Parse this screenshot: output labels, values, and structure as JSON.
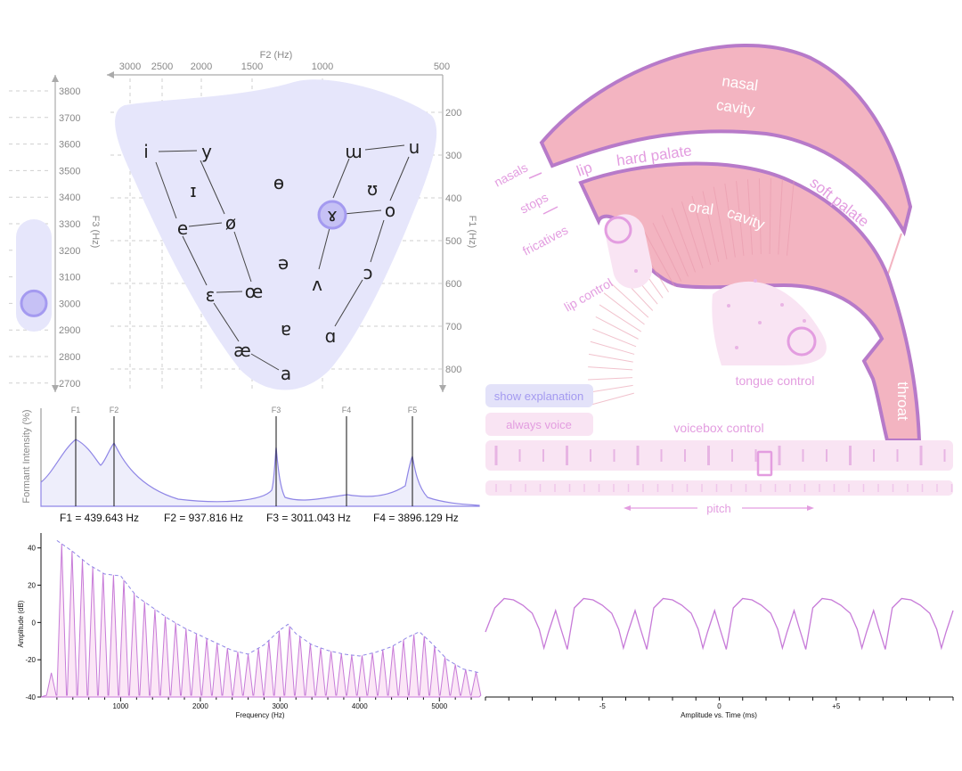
{
  "vowel_chart": {
    "f2_title": "F2 (Hz)",
    "f2_ticks": [
      "3000",
      "2500",
      "2000",
      "1500",
      "1000",
      "500"
    ],
    "f1_title": "F1 (Hz)",
    "f1_ticks": [
      "200",
      "300",
      "400",
      "500",
      "600",
      "700",
      "800"
    ],
    "f3_title": "F3 (Hz)",
    "f3_ticks": [
      "3800",
      "3700",
      "3600",
      "3500",
      "3400",
      "3300",
      "3200",
      "3100",
      "3000",
      "2900",
      "2800",
      "2700"
    ],
    "vowels": [
      "i",
      "y",
      "ɯ",
      "u",
      "ɪ",
      "ɵ",
      "ʊ",
      "ɤ",
      "o",
      "e",
      "ø",
      "ə",
      "ɔ",
      "ʌ",
      "ɛ",
      "œ",
      "ɐ",
      "ɑ",
      "æ",
      "a"
    ],
    "selected_vowel": "ɤ",
    "f3_selected": 3000
  },
  "formant_panel": {
    "ylabel": "Formant Intensity (%)",
    "markers": [
      "F1",
      "F2",
      "F3",
      "F4",
      "F5"
    ],
    "readouts": {
      "f1": "F1 = 439.643 Hz",
      "f2": "F2 = 937.816 Hz",
      "f3": "F3 = 3011.043 Hz",
      "f4": "F4 = 3896.129 Hz"
    }
  },
  "anatomy": {
    "nasal_line1": "nasal",
    "nasal_line2": "cavity",
    "hard_palate": "hard palate",
    "soft_palate": "soft palate",
    "oral": "oral",
    "cavity": "cavity",
    "throat": "throat",
    "lip": "lip",
    "nasals": "nasals",
    "stops": "stops",
    "fricatives": "fricatives",
    "lip_control": "lip control",
    "tongue_control": "tongue control",
    "colors": {
      "nasal_fill": "#f3b4c1",
      "outline": "#b77ac9",
      "accent": "#a49af0",
      "pink_text": "#e39de0"
    }
  },
  "controls": {
    "show_explanation": "show explanation",
    "always_voice": "always voice",
    "voicebox_label": "voicebox control",
    "pitch_label": "pitch"
  },
  "chart_data": [
    {
      "type": "line",
      "title": "",
      "xlabel": "Frequency (Hz)",
      "ylabel": "Amplitude (dB)",
      "x_ticks": [
        "1000",
        "2000",
        "3000",
        "4000",
        "5000"
      ],
      "y_ticks": [
        "40",
        "20",
        "0",
        "-20",
        "-40"
      ],
      "xlim": [
        0,
        5500
      ],
      "ylim": [
        -40,
        48
      ],
      "series": [
        {
          "values": [
            [
              200,
              44
            ],
            [
              400,
              38
            ],
            [
              600,
              31
            ],
            [
              800,
              26
            ],
            [
              1000,
              25
            ],
            [
              1200,
              14
            ],
            [
              1400,
              8
            ],
            [
              1600,
              2
            ],
            [
              1800,
              -3
            ],
            [
              2000,
              -7
            ],
            [
              2200,
              -11
            ],
            [
              2400,
              -15
            ],
            [
              2600,
              -17
            ],
            [
              2800,
              -12
            ],
            [
              3000,
              -4
            ],
            [
              3100,
              -1
            ],
            [
              3200,
              -6
            ],
            [
              3400,
              -12
            ],
            [
              3600,
              -15
            ],
            [
              3800,
              -17
            ],
            [
              4000,
              -18
            ],
            [
              4200,
              -16
            ],
            [
              4400,
              -13
            ],
            [
              4600,
              -8
            ],
            [
              4750,
              -5
            ],
            [
              4900,
              -11
            ],
            [
              5100,
              -20
            ],
            [
              5300,
              -25
            ],
            [
              5500,
              -27
            ]
          ]
        }
      ]
    },
    {
      "type": "line",
      "title": "",
      "xlabel": "Amplitude vs. Time (ms)",
      "ylabel": "",
      "x_ticks": [
        "-5",
        "0",
        "+5"
      ],
      "xlim": [
        -10,
        10
      ],
      "series": [
        {
          "values": [
            [
              -10,
              -0.3
            ],
            [
              -9.6,
              0.6
            ],
            [
              -9.2,
              0.95
            ],
            [
              -8.8,
              0.9
            ],
            [
              -8.4,
              0.7
            ],
            [
              -8.0,
              0.4
            ],
            [
              -7.7,
              -0.2
            ],
            [
              -7.5,
              -0.9
            ],
            [
              -7.3,
              -0.3
            ],
            [
              -7.0,
              0.5
            ],
            [
              -6.8,
              -0.1
            ],
            [
              -6.5,
              -0.95
            ],
            [
              -6.2,
              0.6
            ],
            [
              -5.8,
              0.95
            ],
            [
              -5.4,
              0.9
            ],
            [
              -5.0,
              0.7
            ],
            [
              -4.6,
              0.4
            ],
            [
              -4.3,
              -0.2
            ],
            [
              -4.1,
              -0.9
            ],
            [
              -3.9,
              -0.3
            ],
            [
              -3.6,
              0.5
            ],
            [
              -3.4,
              -0.1
            ],
            [
              -3.1,
              -0.95
            ],
            [
              -2.8,
              0.6
            ],
            [
              -2.4,
              0.95
            ],
            [
              -2.0,
              0.9
            ],
            [
              -1.6,
              0.7
            ],
            [
              -1.2,
              0.4
            ],
            [
              -0.9,
              -0.2
            ],
            [
              -0.7,
              -0.9
            ],
            [
              -0.5,
              -0.3
            ],
            [
              -0.2,
              0.5
            ],
            [
              0.0,
              -0.1
            ],
            [
              0.3,
              -0.95
            ],
            [
              0.6,
              0.6
            ],
            [
              1.0,
              0.95
            ],
            [
              1.4,
              0.9
            ],
            [
              1.8,
              0.7
            ],
            [
              2.2,
              0.4
            ],
            [
              2.5,
              -0.2
            ],
            [
              2.7,
              -0.9
            ],
            [
              2.9,
              -0.3
            ],
            [
              3.2,
              0.5
            ],
            [
              3.4,
              -0.1
            ],
            [
              3.7,
              -0.95
            ],
            [
              4.0,
              0.6
            ],
            [
              4.4,
              0.95
            ],
            [
              4.8,
              0.9
            ],
            [
              5.2,
              0.7
            ],
            [
              5.6,
              0.4
            ],
            [
              5.9,
              -0.2
            ],
            [
              6.1,
              -0.9
            ],
            [
              6.3,
              -0.3
            ],
            [
              6.6,
              0.5
            ],
            [
              6.8,
              -0.1
            ],
            [
              7.1,
              -0.95
            ],
            [
              7.4,
              0.6
            ],
            [
              7.8,
              0.95
            ],
            [
              8.2,
              0.9
            ],
            [
              8.6,
              0.7
            ],
            [
              9.0,
              0.4
            ],
            [
              9.3,
              -0.2
            ],
            [
              9.5,
              -0.9
            ],
            [
              9.7,
              -0.3
            ],
            [
              10,
              0.5
            ]
          ]
        }
      ]
    }
  ]
}
